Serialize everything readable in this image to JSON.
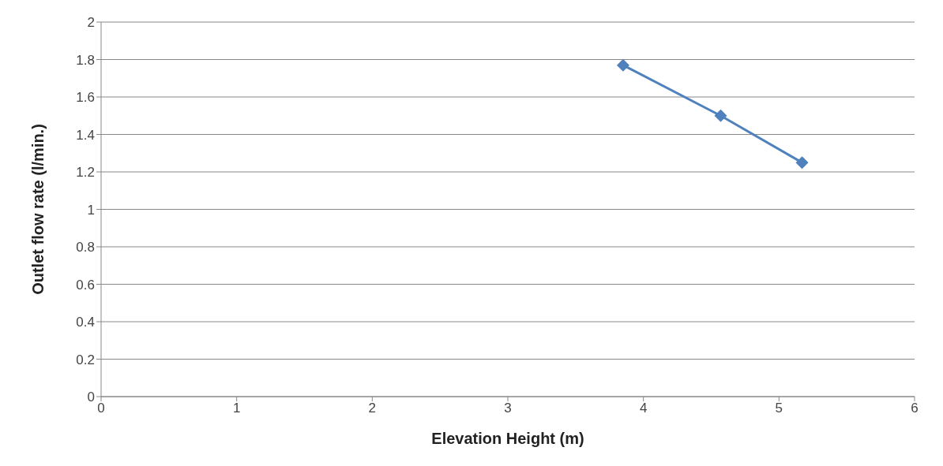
{
  "chart_data": {
    "type": "line",
    "xlabel": "Elevation Height (m)",
    "ylabel": "Outlet flow rate (l/min.)",
    "x": [
      3.85,
      4.57,
      5.17
    ],
    "series": [
      {
        "color": "#4f81bd",
        "values": [
          1.77,
          1.5,
          1.25
        ]
      }
    ],
    "xlim": [
      0,
      6
    ],
    "xticks": [
      0,
      1,
      2,
      3,
      4,
      5,
      6
    ],
    "ylim": [
      0,
      2
    ],
    "yticks": [
      0,
      0.2,
      0.4,
      0.6,
      0.8,
      1,
      1.2,
      1.4,
      1.6,
      1.8,
      2
    ],
    "grid": "y",
    "marker": "diamond",
    "line_style": "solid",
    "legend": false
  }
}
